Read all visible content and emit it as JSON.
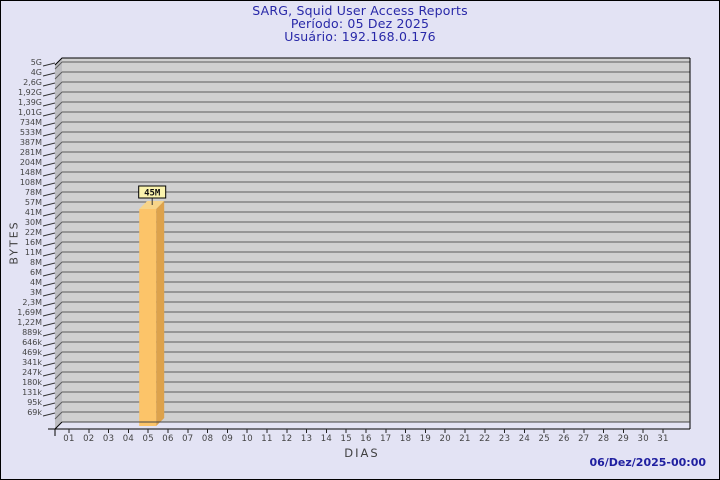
{
  "title": {
    "line1": "SARG, Squid User Access Reports",
    "line2": "Período: 05 Dez 2025",
    "line3": "Usuário: 192.168.0.176",
    "color": "#2828a8"
  },
  "footer": {
    "timestamp": "06/Dez/2025-00:00",
    "color": "#2020a0"
  },
  "chart_data": {
    "type": "bar",
    "title": "SARG, Squid User Access Reports",
    "subtitle": "Período: 05 Dez 2025",
    "user": "Usuário: 192.168.0.176",
    "xlabel": "DIAS",
    "ylabel": "BYTES",
    "y_scale": "log",
    "grid": "horizontal",
    "y_axis_range": {
      "min_label": "69k",
      "max_label": "5G",
      "min_value": 69000,
      "max_value": 5000000000
    },
    "y_tick_labels": [
      "5G",
      "4G",
      "2,6G",
      "1,92G",
      "1,39G",
      "1,01G",
      "734M",
      "533M",
      "387M",
      "281M",
      "204M",
      "148M",
      "108M",
      "78M",
      "57M",
      "41M",
      "30M",
      "22M",
      "16M",
      "11M",
      "8M",
      "6M",
      "4M",
      "3M",
      "2,3M",
      "1,69M",
      "1,22M",
      "889k",
      "646k",
      "469k",
      "341k",
      "247k",
      "180k",
      "131k",
      "95k",
      "69k"
    ],
    "categories": [
      "01",
      "02",
      "03",
      "04",
      "05",
      "06",
      "07",
      "08",
      "09",
      "10",
      "11",
      "12",
      "13",
      "14",
      "15",
      "16",
      "17",
      "18",
      "19",
      "20",
      "21",
      "22",
      "23",
      "24",
      "25",
      "26",
      "27",
      "28",
      "29",
      "30",
      "31"
    ],
    "series": [
      {
        "name": "bytes",
        "values": [
          0,
          0,
          0,
          0,
          45000000,
          0,
          0,
          0,
          0,
          0,
          0,
          0,
          0,
          0,
          0,
          0,
          0,
          0,
          0,
          0,
          0,
          0,
          0,
          0,
          0,
          0,
          0,
          0,
          0,
          0,
          0
        ]
      }
    ],
    "bar_labels": [
      {
        "category": "05",
        "text": "45M",
        "value": 45000000
      }
    ],
    "colors": {
      "background": "#e3e3f4",
      "plot_bg": "#d0d0d0",
      "wall": "#bcbcc0",
      "grid": "#5c5c5c",
      "axis": "#000000",
      "wall_bottom": "#444444",
      "tick_text": "#444444",
      "bar_front": "#fcc469",
      "bar_side": "#dda24c",
      "bar_top": "#f7d489",
      "label_box_bg": "#faf3ad",
      "label_box_border": "#000000"
    }
  }
}
